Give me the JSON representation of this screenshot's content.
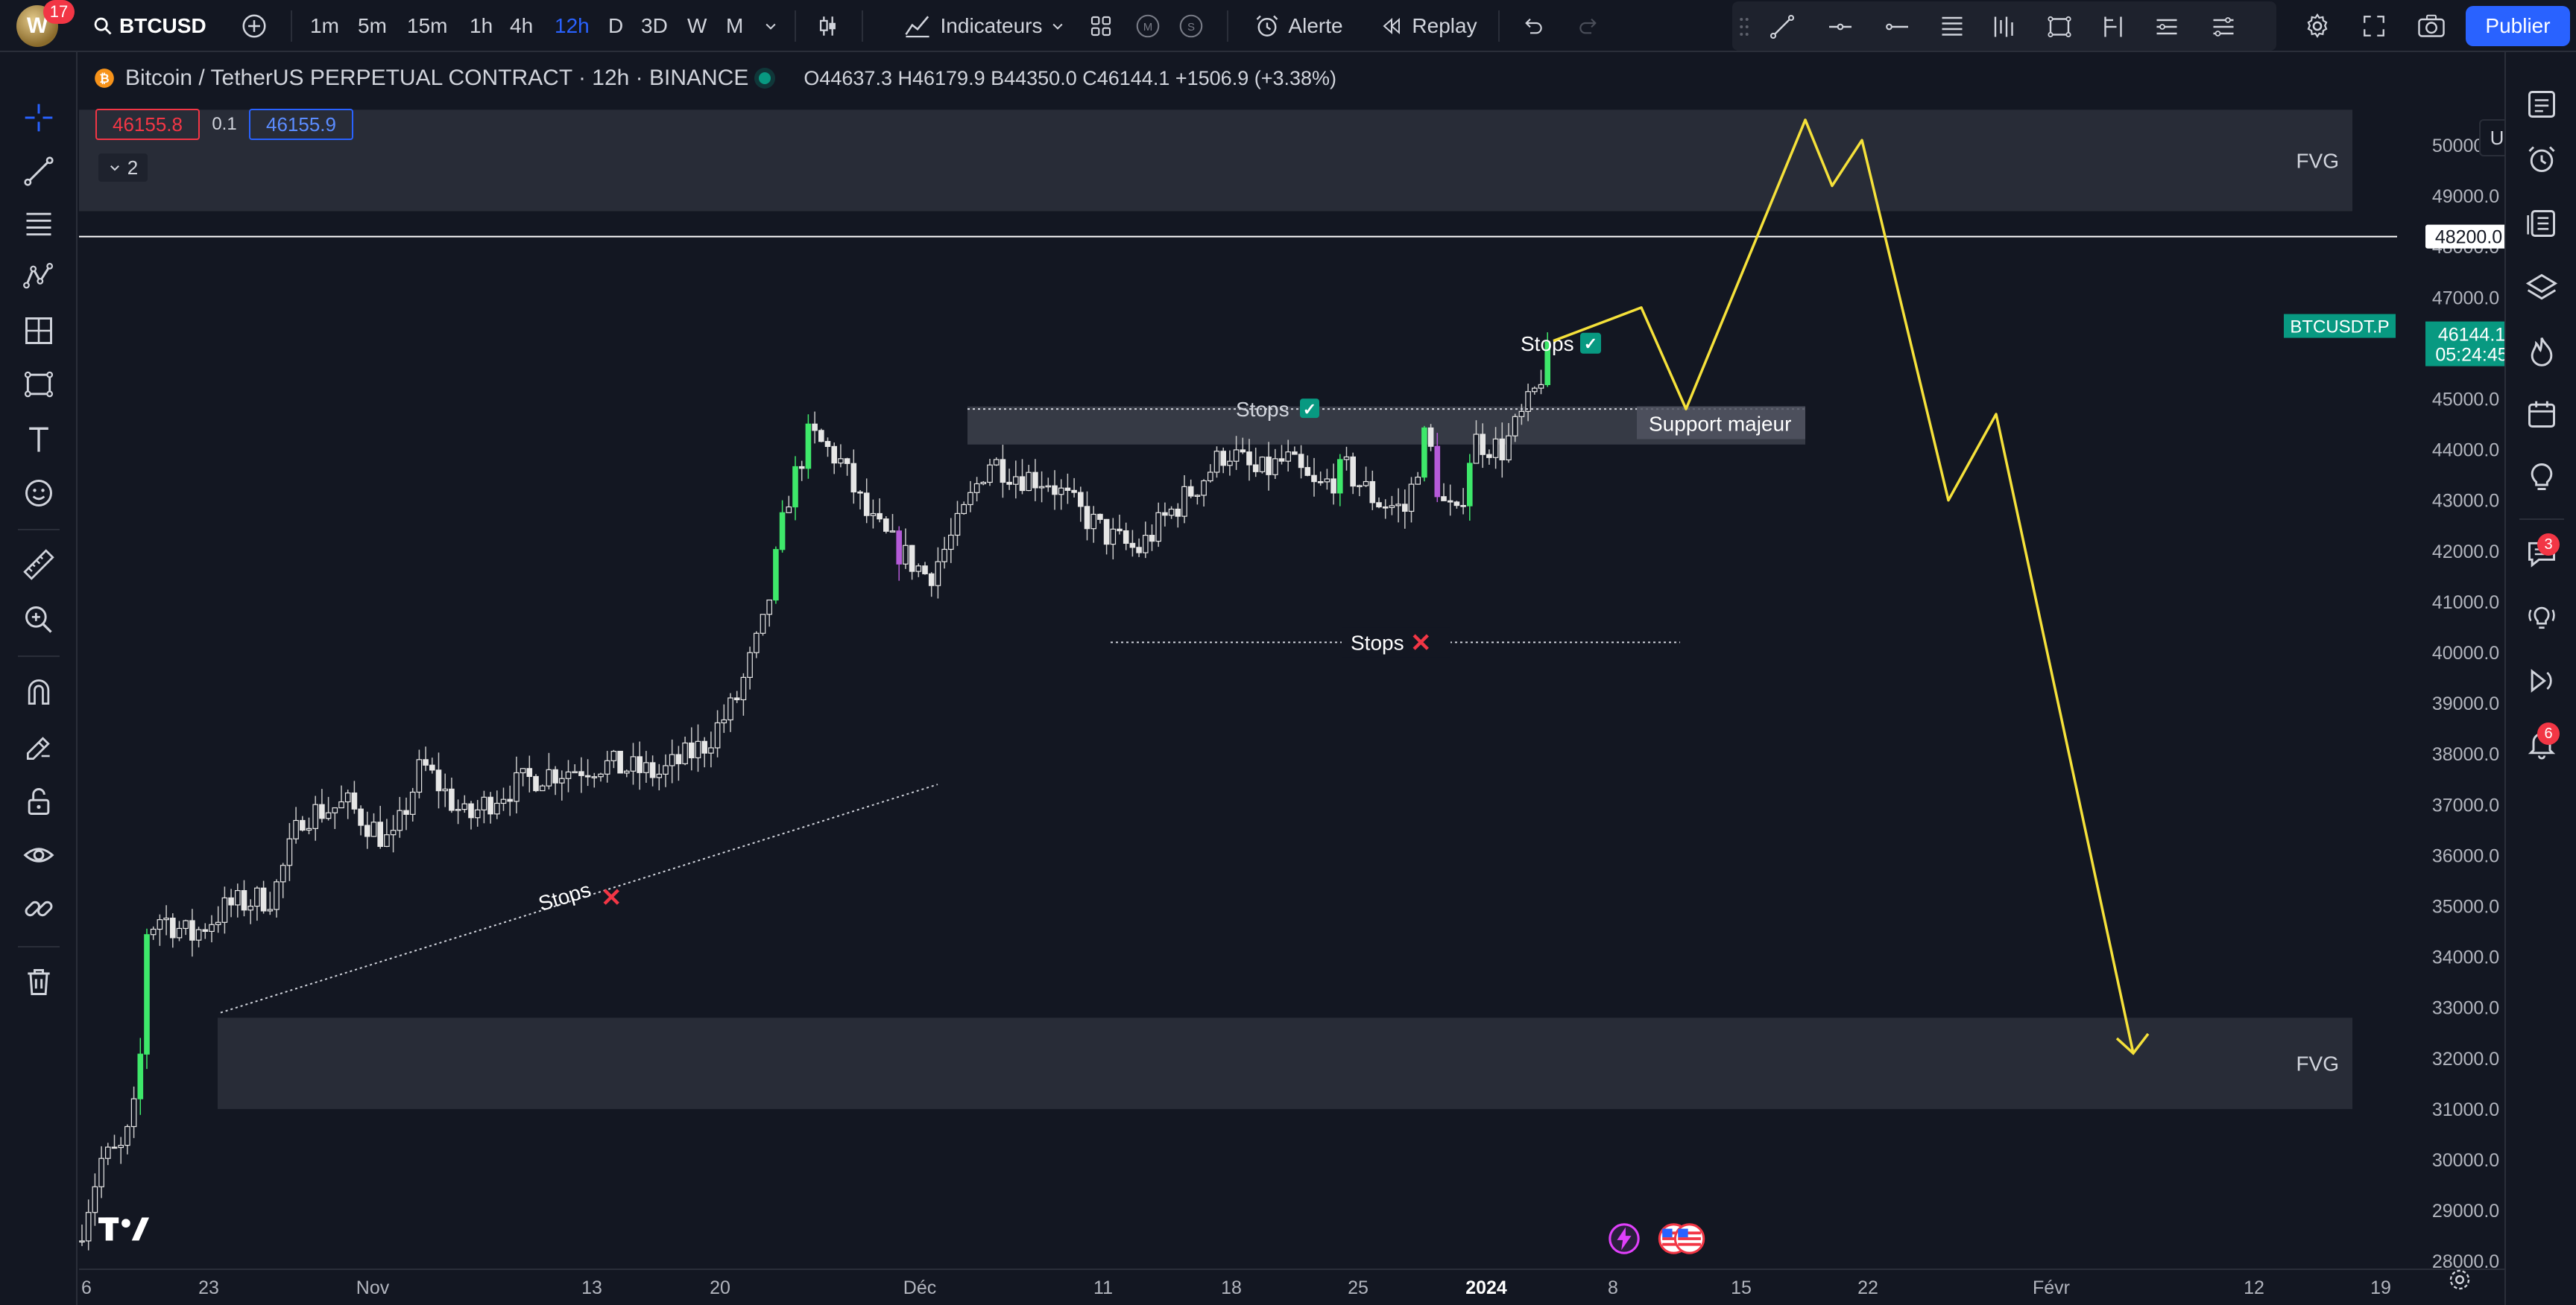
{
  "topbar": {
    "avatar_badge": "17",
    "symbol": "BTCUSD",
    "timeframes": [
      "1m",
      "5m",
      "15m",
      "1h",
      "4h",
      "12h",
      "D",
      "3D",
      "W",
      "M"
    ],
    "active_timeframe": "12h",
    "indicators_label": "Indicateurs",
    "alert_label": "Alerte",
    "replay_label": "Replay",
    "publish_label": "Publier"
  },
  "legend": {
    "title": "Bitcoin / TetherUS PERPETUAL CONTRACT · 12h · BINANCE",
    "open": "O44637.3",
    "high": "H46179.9",
    "low": "B44350.0",
    "close": "C46144.1",
    "change": "+1506.9 (+3.38%)",
    "sell_price": "46155.8",
    "spread": "0.1",
    "buy_price": "46155.9",
    "collapsed_count": "2"
  },
  "currency": "USDT",
  "right_badges": {
    "chat": "3",
    "alerts": "6"
  },
  "chart_data": {
    "type": "candlestick",
    "price_ticks": [
      "50000.0",
      "49000.0",
      "48000.0",
      "47000.0",
      "45000.0",
      "44000.0",
      "43000.0",
      "42000.0",
      "41000.0",
      "40000.0",
      "39000.0",
      "38000.0",
      "37000.0",
      "36000.0",
      "35000.0",
      "34000.0",
      "33000.0",
      "32000.0",
      "31000.0",
      "30000.0",
      "29000.0",
      "28000.0"
    ],
    "time_ticks": [
      {
        "label": "6",
        "bold": false
      },
      {
        "label": "23",
        "bold": false
      },
      {
        "label": "Nov",
        "bold": false
      },
      {
        "label": "13",
        "bold": false
      },
      {
        "label": "20",
        "bold": false
      },
      {
        "label": "Déc",
        "bold": false
      },
      {
        "label": "11",
        "bold": false
      },
      {
        "label": "18",
        "bold": false
      },
      {
        "label": "25",
        "bold": false
      },
      {
        "label": "2024",
        "bold": true
      },
      {
        "label": "8",
        "bold": false
      },
      {
        "label": "15",
        "bold": false
      },
      {
        "label": "22",
        "bold": false
      },
      {
        "label": "Févr",
        "bold": false
      },
      {
        "label": "12",
        "bold": false
      },
      {
        "label": "19",
        "bold": false
      }
    ],
    "horizontal_line_label": "48200.0",
    "last_price": {
      "symbol": "BTCUSDT.P",
      "price": "46144.1",
      "countdown": "05:24:45"
    },
    "zones": [
      {
        "label": "FVG",
        "from": 48700,
        "to": 50700
      },
      {
        "label": "",
        "from": 44100,
        "to": 44850
      },
      {
        "label": "FVG",
        "from": 31000,
        "to": 32800
      }
    ],
    "annotations": {
      "stops_trend": "Stops",
      "stops_range_top": "Stops",
      "stops_range_bottom": "Stops",
      "stops_breakout": "Stops",
      "support": "Support majeur"
    },
    "projection": [
      [
        46144,
        46800
      ],
      [
        44800
      ],
      [
        50500
      ],
      [
        49200
      ],
      [
        50100
      ],
      [
        43000
      ],
      [
        44700
      ],
      [
        32100
      ]
    ]
  }
}
